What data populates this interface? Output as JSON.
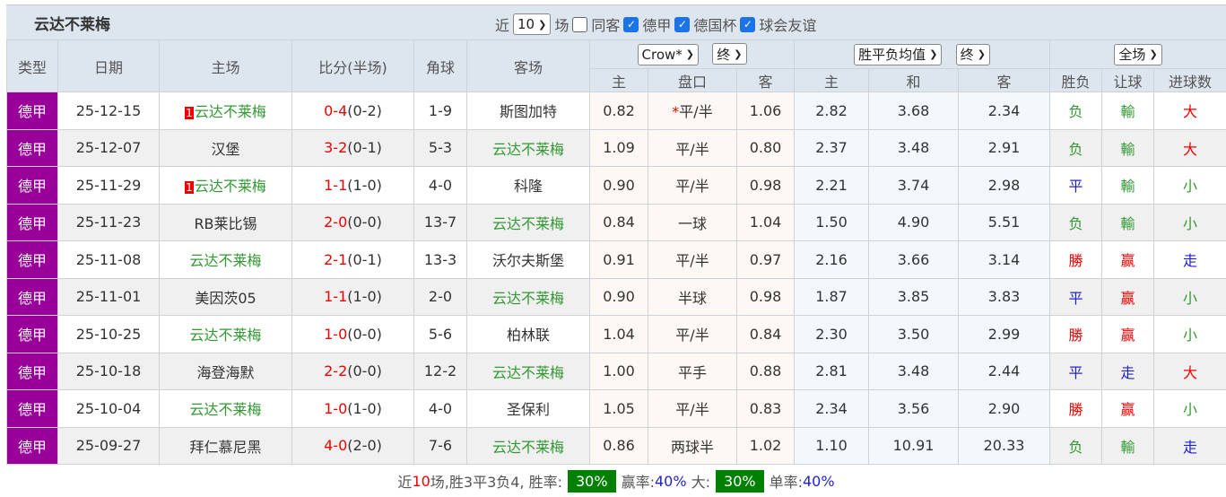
{
  "title": "云达不莱梅",
  "filters": {
    "near": "近",
    "count": "10",
    "unit": "场",
    "same": "同客",
    "checks": [
      "德甲",
      "德国杯",
      "球会友谊"
    ]
  },
  "header": {
    "type": "类型",
    "date": "日期",
    "home": "主场",
    "score": "比分(半场)",
    "corner": "角球",
    "away": "客场",
    "company": "Crow*",
    "stage1": "终",
    "avg": "胜平负均值",
    "stage2": "终",
    "scope": "全场",
    "sub": [
      "主",
      "盘口",
      "客",
      "主",
      "和",
      "客",
      "胜负",
      "让球",
      "进球数"
    ]
  },
  "colors": {
    "league": "#990099",
    "win": "#e00",
    "draw": "#22c",
    "loss": "#339933"
  },
  "rows": [
    {
      "lg": "德甲",
      "date": "25-12-15",
      "rc": "1",
      "home": "云达不莱梅",
      "hw": true,
      "ft": "0-4",
      "ht": "(0-2)",
      "cn": "1-9",
      "away": "斯图加特",
      "aw": false,
      "o1": "0.82",
      "star": "*",
      "hc": "平/半",
      "o2": "1.06",
      "e1": "2.82",
      "e2": "3.68",
      "e3": "2.34",
      "res": "负",
      "rc1": "g",
      "ah": "輸",
      "ac": "g",
      "ou": "大",
      "oc": "r"
    },
    {
      "lg": "德甲",
      "date": "25-12-07",
      "rc": "",
      "home": "汉堡",
      "hw": false,
      "ft": "3-2",
      "ht": "(0-1)",
      "cn": "5-3",
      "away": "云达不莱梅",
      "aw": true,
      "o1": "1.09",
      "star": "",
      "hc": "平/半",
      "o2": "0.80",
      "e1": "2.37",
      "e2": "3.48",
      "e3": "2.91",
      "res": "负",
      "rc1": "g",
      "ah": "輸",
      "ac": "g",
      "ou": "大",
      "oc": "r"
    },
    {
      "lg": "德甲",
      "date": "25-11-29",
      "rc": "1",
      "home": "云达不莱梅",
      "hw": true,
      "ft": "1-1",
      "ht": "(1-0)",
      "cn": "4-0",
      "away": "科隆",
      "aw": false,
      "o1": "0.90",
      "star": "",
      "hc": "平/半",
      "o2": "0.98",
      "e1": "2.21",
      "e2": "3.74",
      "e3": "2.98",
      "res": "平",
      "rc1": "b",
      "ah": "輸",
      "ac": "g",
      "ou": "小",
      "oc": "g"
    },
    {
      "lg": "德甲",
      "date": "25-11-23",
      "rc": "",
      "home": "RB莱比锡",
      "hw": false,
      "ft": "2-0",
      "ht": "(0-0)",
      "cn": "13-7",
      "away": "云达不莱梅",
      "aw": true,
      "o1": "0.84",
      "star": "",
      "hc": "一球",
      "o2": "1.04",
      "e1": "1.50",
      "e2": "4.90",
      "e3": "5.51",
      "res": "负",
      "rc1": "g",
      "ah": "輸",
      "ac": "g",
      "ou": "小",
      "oc": "g"
    },
    {
      "lg": "德甲",
      "date": "25-11-08",
      "rc": "",
      "home": "云达不莱梅",
      "hw": true,
      "ft": "2-1",
      "ht": "(0-1)",
      "cn": "13-3",
      "away": "沃尔夫斯堡",
      "aw": false,
      "o1": "0.91",
      "star": "",
      "hc": "平/半",
      "o2": "0.97",
      "e1": "2.16",
      "e2": "3.66",
      "e3": "3.14",
      "res": "勝",
      "rc1": "r",
      "ah": "赢",
      "ac": "r",
      "ou": "走",
      "oc": "b"
    },
    {
      "lg": "德甲",
      "date": "25-11-01",
      "rc": "",
      "home": "美因茨05",
      "hw": false,
      "ft": "1-1",
      "ht": "(1-0)",
      "cn": "2-0",
      "away": "云达不莱梅",
      "aw": true,
      "o1": "0.90",
      "star": "",
      "hc": "半球",
      "o2": "0.98",
      "e1": "1.87",
      "e2": "3.85",
      "e3": "3.83",
      "res": "平",
      "rc1": "b",
      "ah": "赢",
      "ac": "r",
      "ou": "小",
      "oc": "g"
    },
    {
      "lg": "德甲",
      "date": "25-10-25",
      "rc": "",
      "home": "云达不莱梅",
      "hw": true,
      "ft": "1-0",
      "ht": "(0-0)",
      "cn": "5-6",
      "away": "柏林联",
      "aw": false,
      "o1": "1.04",
      "star": "",
      "hc": "平/半",
      "o2": "0.84",
      "e1": "2.30",
      "e2": "3.50",
      "e3": "2.99",
      "res": "勝",
      "rc1": "r",
      "ah": "赢",
      "ac": "r",
      "ou": "小",
      "oc": "g"
    },
    {
      "lg": "德甲",
      "date": "25-10-18",
      "rc": "",
      "home": "海登海默",
      "hw": false,
      "ft": "2-2",
      "ht": "(0-0)",
      "cn": "12-2",
      "away": "云达不莱梅",
      "aw": true,
      "o1": "1.00",
      "star": "",
      "hc": "平手",
      "o2": "0.88",
      "e1": "2.81",
      "e2": "3.48",
      "e3": "2.44",
      "res": "平",
      "rc1": "b",
      "ah": "走",
      "ac": "b",
      "ou": "大",
      "oc": "r"
    },
    {
      "lg": "德甲",
      "date": "25-10-04",
      "rc": "",
      "home": "云达不莱梅",
      "hw": true,
      "ft": "1-0",
      "ht": "(1-0)",
      "cn": "4-0",
      "away": "圣保利",
      "aw": false,
      "o1": "1.05",
      "star": "",
      "hc": "平/半",
      "o2": "0.83",
      "e1": "2.34",
      "e2": "3.56",
      "e3": "2.90",
      "res": "勝",
      "rc1": "r",
      "ah": "赢",
      "ac": "r",
      "ou": "小",
      "oc": "g"
    },
    {
      "lg": "德甲",
      "date": "25-09-27",
      "rc": "",
      "home": "拜仁慕尼黑",
      "hw": false,
      "ft": "4-0",
      "ht": "(2-0)",
      "cn": "7-6",
      "away": "云达不莱梅",
      "aw": true,
      "o1": "0.86",
      "star": "",
      "hc": "两球半",
      "o2": "1.02",
      "e1": "1.10",
      "e2": "10.91",
      "e3": "20.33",
      "res": "负",
      "rc1": "g",
      "ah": "輸",
      "ac": "g",
      "ou": "走",
      "oc": "b"
    }
  ],
  "footer": {
    "p1": "近",
    "n": "10",
    "p2": "场,胜3平3负4, 胜率:",
    "win": "30%",
    "p3": "赢率:",
    "ah": "40%",
    "p4": "大:",
    "big": "30%",
    "p5": "单率:",
    "odd": "40%"
  }
}
